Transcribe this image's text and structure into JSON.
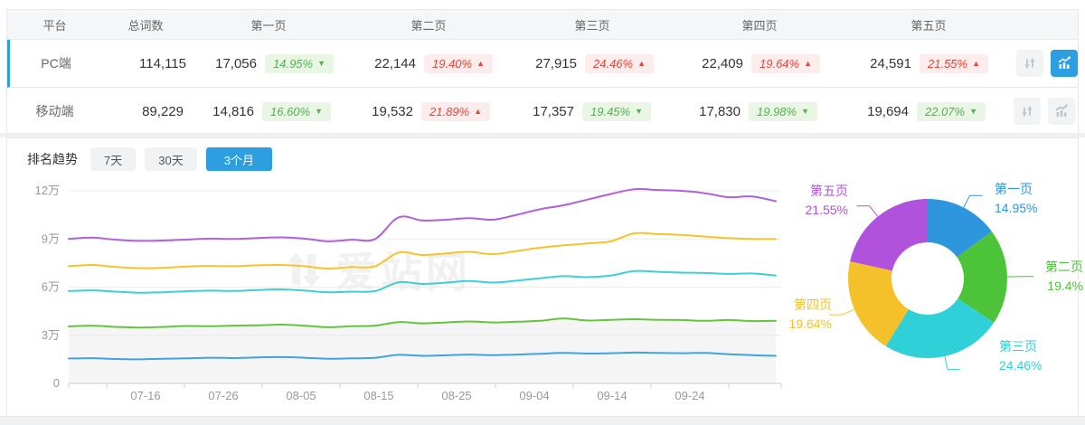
{
  "table": {
    "headers": [
      "平台",
      "总词数",
      "第一页",
      "第二页",
      "第三页",
      "第四页",
      "第五页"
    ],
    "rows": [
      {
        "platform": "PC端",
        "total": "114,115",
        "selected": true,
        "pages": [
          {
            "count": "17,056",
            "pct": "14.95%",
            "dir": "down"
          },
          {
            "count": "22,144",
            "pct": "19.40%",
            "dir": "up"
          },
          {
            "count": "27,915",
            "pct": "24.46%",
            "dir": "up"
          },
          {
            "count": "22,409",
            "pct": "19.64%",
            "dir": "up"
          },
          {
            "count": "24,591",
            "pct": "21.55%",
            "dir": "up"
          }
        ],
        "chart_icon_active": true
      },
      {
        "platform": "移动端",
        "total": "89,229",
        "selected": false,
        "pages": [
          {
            "count": "14,816",
            "pct": "16.60%",
            "dir": "down"
          },
          {
            "count": "19,532",
            "pct": "21.89%",
            "dir": "up"
          },
          {
            "count": "17,357",
            "pct": "19.45%",
            "dir": "down"
          },
          {
            "count": "17,830",
            "pct": "19.98%",
            "dir": "down"
          },
          {
            "count": "19,694",
            "pct": "22.07%",
            "dir": "down"
          }
        ],
        "chart_icon_active": false
      }
    ]
  },
  "trend": {
    "title": "排名趋势",
    "tabs": [
      {
        "label": "7天",
        "active": false
      },
      {
        "label": "30天",
        "active": false
      },
      {
        "label": "3个月",
        "active": true
      }
    ]
  },
  "watermark": "爱站网",
  "colors": {
    "accent_blue": "#2d9fe0",
    "badge_green_text": "#52b052",
    "badge_green_bg": "#e9f6e3",
    "badge_red_text": "#e8453c",
    "badge_red_bg": "#fdecec",
    "line_series": [
      "#b160dd",
      "#f7c32b",
      "#3ecfd4",
      "#63c53d",
      "#41a3e3"
    ],
    "donut_slices": [
      "#2e96dc",
      "#4cc338",
      "#2fd0d8",
      "#f5c12b",
      "#b152dc"
    ]
  },
  "chart_data": [
    {
      "type": "line",
      "x_labels": [
        "07-16",
        "07-26",
        "08-05",
        "08-15",
        "08-25",
        "09-04",
        "09-14",
        "09-24"
      ],
      "y_labels": [
        "0",
        "3万",
        "6万",
        "9万",
        "12万"
      ],
      "ylim": [
        0,
        120000
      ],
      "unit": "万",
      "grid": true,
      "legend": "none",
      "series": [
        {
          "color": "#b160dd",
          "values": [
            9.0,
            9.08,
            8.95,
            8.88,
            8.9,
            8.96,
            9.02,
            9.0,
            9.06,
            9.1,
            9.02,
            8.85,
            8.95,
            9.0,
            10.35,
            10.15,
            10.2,
            10.3,
            10.2,
            10.5,
            10.85,
            11.1,
            11.45,
            11.8,
            12.1,
            12.05,
            12.0,
            11.85,
            11.6,
            11.65,
            11.35
          ]
        },
        {
          "color": "#f7c32b",
          "values": [
            7.3,
            7.38,
            7.25,
            7.18,
            7.2,
            7.28,
            7.32,
            7.3,
            7.36,
            7.38,
            7.3,
            7.15,
            7.25,
            7.3,
            8.15,
            8.0,
            8.1,
            8.2,
            8.05,
            8.25,
            8.45,
            8.6,
            8.72,
            8.85,
            9.35,
            9.3,
            9.25,
            9.15,
            9.05,
            9.0,
            9.0
          ]
        },
        {
          "color": "#3ecfd4",
          "values": [
            5.75,
            5.8,
            5.72,
            5.65,
            5.68,
            5.74,
            5.78,
            5.76,
            5.82,
            5.86,
            5.78,
            5.68,
            5.72,
            5.75,
            6.3,
            6.2,
            6.28,
            6.38,
            6.28,
            6.4,
            6.55,
            6.68,
            6.62,
            6.72,
            7.0,
            6.95,
            6.9,
            6.88,
            6.82,
            6.85,
            6.72
          ]
        },
        {
          "color": "#63c53d",
          "area": true,
          "area_color": "#f5f5f5",
          "values": [
            3.55,
            3.6,
            3.52,
            3.48,
            3.52,
            3.58,
            3.56,
            3.6,
            3.62,
            3.66,
            3.6,
            3.5,
            3.56,
            3.6,
            3.82,
            3.74,
            3.8,
            3.86,
            3.8,
            3.84,
            3.9,
            4.05,
            3.92,
            3.96,
            4.0,
            3.96,
            3.95,
            3.9,
            3.95,
            3.88,
            3.9
          ]
        },
        {
          "color": "#41a3e3",
          "values": [
            1.55,
            1.57,
            1.52,
            1.5,
            1.54,
            1.56,
            1.6,
            1.58,
            1.62,
            1.64,
            1.6,
            1.54,
            1.56,
            1.6,
            1.78,
            1.72,
            1.75,
            1.8,
            1.76,
            1.8,
            1.85,
            1.9,
            1.86,
            1.88,
            1.92,
            1.9,
            1.88,
            1.9,
            1.82,
            1.76,
            1.72
          ]
        }
      ]
    },
    {
      "type": "pie",
      "subtype": "donut",
      "labels": [
        "第一页",
        "第二页",
        "第三页",
        "第四页",
        "第五页"
      ],
      "values": [
        14.95,
        19.4,
        24.46,
        19.64,
        21.55
      ],
      "display_values": [
        "14.95%",
        "19.4%",
        "24.46%",
        "19.64%",
        "21.55%"
      ],
      "colors": [
        "#2e96dc",
        "#4cc338",
        "#2fd0d8",
        "#f5c12b",
        "#b152dc"
      ]
    }
  ]
}
